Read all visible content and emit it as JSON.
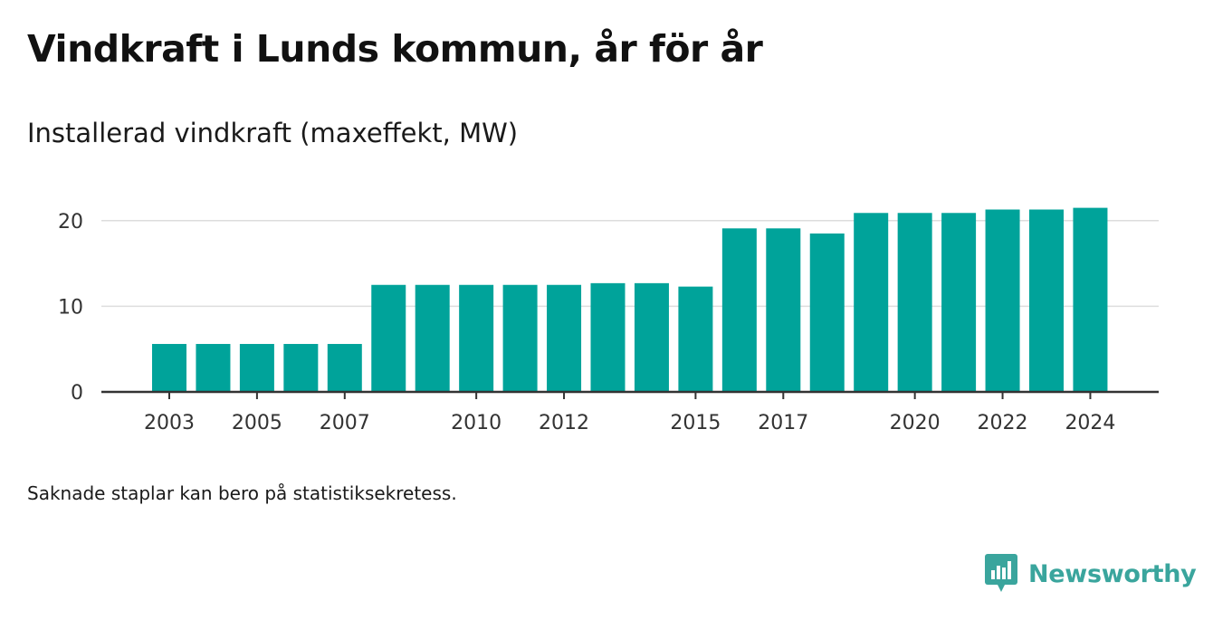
{
  "header": {
    "title": "Vindkraft i Lunds kommun, år för år",
    "subtitle": "Installerad vindkraft (maxeffekt, MW)"
  },
  "footer": {
    "note": "Saknade staplar kan bero på statistiksekretess.",
    "brand": "Newsworthy"
  },
  "colors": {
    "bar": "#00a39a",
    "brand": "#3aa59d",
    "grid": "#dddddd",
    "axis": "#333333"
  },
  "chart_data": {
    "type": "bar",
    "categories": [
      "2003",
      "2004",
      "2005",
      "2006",
      "2007",
      "2008",
      "2009",
      "2010",
      "2011",
      "2012",
      "2013",
      "2014",
      "2015",
      "2016",
      "2017",
      "2018",
      "2019",
      "2020",
      "2021",
      "2022",
      "2023",
      "2024"
    ],
    "values": [
      5.6,
      5.6,
      5.6,
      5.6,
      5.6,
      12.5,
      12.5,
      12.5,
      12.5,
      12.5,
      12.7,
      12.7,
      12.3,
      19.1,
      19.1,
      18.5,
      20.9,
      20.9,
      20.9,
      21.3,
      21.3,
      21.5
    ],
    "x_tick_labels": [
      "2003",
      "2005",
      "2007",
      "2010",
      "2012",
      "2015",
      "2017",
      "2020",
      "2022",
      "2024"
    ],
    "y_ticks": [
      0,
      10,
      20
    ],
    "ylim": [
      0,
      23
    ],
    "grid": true
  }
}
